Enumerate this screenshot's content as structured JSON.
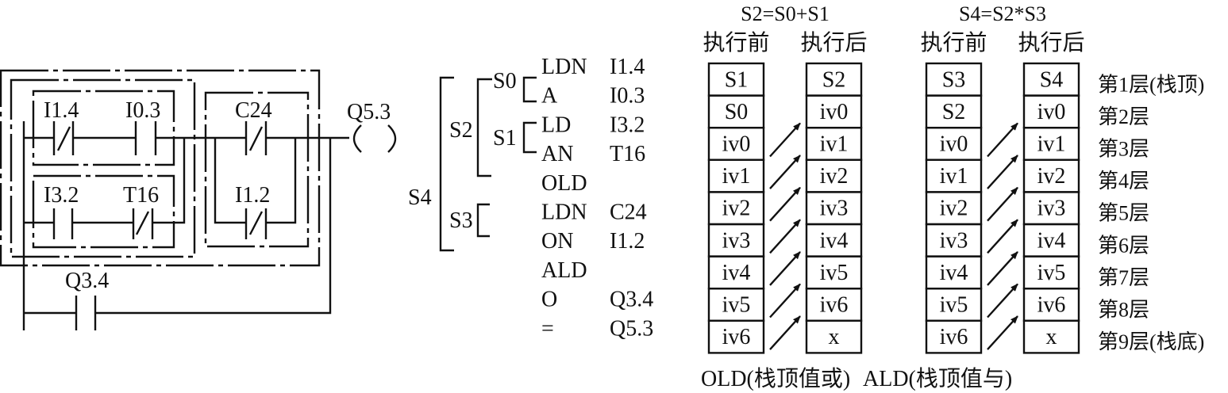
{
  "ladder": {
    "contacts": {
      "i14": "I1.4",
      "i03": "I0.3",
      "c24": "C24",
      "i32": "I3.2",
      "t16": "T16",
      "i12": "I1.2",
      "q34": "Q3.4"
    },
    "coil": "Q5.3"
  },
  "instruction_list": {
    "block_labels": {
      "s4": "S4",
      "s2": "S2",
      "s3": "S3",
      "s0": "S0",
      "s1": "S1"
    },
    "rows": [
      {
        "op": "LDN",
        "arg": "I1.4"
      },
      {
        "op": "A",
        "arg": "I0.3"
      },
      {
        "op": "LD",
        "arg": "I3.2"
      },
      {
        "op": "AN",
        "arg": "T16"
      },
      {
        "op": "OLD",
        "arg": ""
      },
      {
        "op": "LDN",
        "arg": "C24"
      },
      {
        "op": "ON",
        "arg": "I1.2"
      },
      {
        "op": "ALD",
        "arg": ""
      },
      {
        "op": "O",
        "arg": "Q3.4"
      },
      {
        "op": "=",
        "arg": "Q5.3"
      }
    ]
  },
  "stacks": [
    {
      "formula": "S2=S0+S1",
      "before_label": "执行前",
      "after_label": "执行后",
      "before": [
        "S1",
        "S0",
        "iv0",
        "iv1",
        "iv2",
        "iv3",
        "iv4",
        "iv5",
        "iv6"
      ],
      "after": [
        "S2",
        "iv0",
        "iv1",
        "iv2",
        "iv3",
        "iv4",
        "iv5",
        "iv6",
        "x"
      ],
      "caption": "OLD(栈顶值或)"
    },
    {
      "formula": "S4=S2*S3",
      "before_label": "执行前",
      "after_label": "执行后",
      "before": [
        "S3",
        "S2",
        "iv0",
        "iv1",
        "iv2",
        "iv3",
        "iv4",
        "iv5",
        "iv6"
      ],
      "after": [
        "S4",
        "iv0",
        "iv1",
        "iv2",
        "iv3",
        "iv4",
        "iv5",
        "iv6",
        "x"
      ],
      "caption": "ALD(栈顶值与)"
    }
  ],
  "layers": [
    "第1层(栈顶)",
    "第2层",
    "第3层",
    "第4层",
    "第5层",
    "第6层",
    "第7层",
    "第8层",
    "第9层(栈底)"
  ]
}
